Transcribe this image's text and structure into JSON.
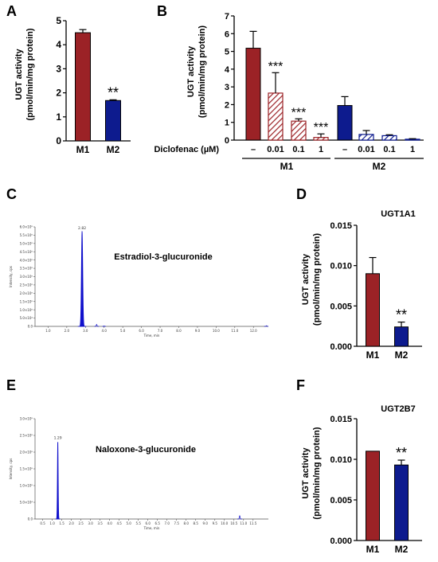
{
  "colors": {
    "m1": "#9b2226",
    "m2": "#0d1b8e",
    "chromatogram": "#1010cc",
    "axis": "#000000"
  },
  "chart_data": [
    {
      "panel": "A",
      "type": "bar",
      "ylabel_line1": "UGT activity",
      "ylabel_line2": "(pmol/min/mg protein)",
      "ylim": [
        0,
        5
      ],
      "yticks": [
        "0",
        "1",
        "2",
        "3",
        "4",
        "5"
      ],
      "categories": [
        "M1",
        "M2"
      ],
      "values": [
        4.5,
        1.68
      ],
      "errors": [
        0.13,
        0.03
      ],
      "annotations": [
        "",
        "**"
      ]
    },
    {
      "panel": "B",
      "type": "bar",
      "ylabel_line1": "UGT activity",
      "ylabel_line2": "(pmol/min/mg protein)",
      "ylim": [
        0,
        7
      ],
      "yticks": [
        "0",
        "1",
        "2",
        "3",
        "4",
        "5",
        "6",
        "7"
      ],
      "xlabel": "Diclofenac (µM)",
      "categories": [
        "–",
        "0.01",
        "0.1",
        "1",
        "–",
        "0.01",
        "0.1",
        "1"
      ],
      "groups": [
        "M1",
        "M2"
      ],
      "values": [
        5.18,
        2.65,
        1.07,
        0.15,
        1.95,
        0.32,
        0.25,
        0.05
      ],
      "errors": [
        0.95,
        1.15,
        0.13,
        0.2,
        0.5,
        0.22,
        0.05,
        0.03
      ],
      "annotations": [
        "",
        "***",
        "***",
        "***",
        "",
        "",
        "",
        ""
      ]
    },
    {
      "panel": "C",
      "type": "line",
      "title": "Estradiol-3-glucuronide",
      "peak_label": "2.82",
      "ylabel": "Intensity, cps",
      "xlabel": "Time, min",
      "xticks": [
        "1.0",
        "2.0",
        "3.0",
        "4.0",
        "5.0",
        "6.0",
        "7.0",
        "8.0",
        "9.0",
        "10.0",
        "11.0",
        "12.0"
      ],
      "yticks": [
        "0.0",
        "5.0×10⁴",
        "1.0×10⁵",
        "1.5×10⁵",
        "2.0×10⁵",
        "2.5×10⁵",
        "3.0×10⁵",
        "3.5×10⁵",
        "4.0×10⁵",
        "4.5×10⁵",
        "5.0×10⁵",
        "5.5×10⁵",
        "6.0×10⁵"
      ],
      "xlim": [
        0.3,
        12.8
      ],
      "ylim": [
        0,
        600000
      ],
      "peaks": [
        {
          "rt": 2.82,
          "height": 575000,
          "width": 0.09
        },
        {
          "rt": 3.6,
          "height": 12000,
          "width": 0.05
        },
        {
          "rt": 4.0,
          "height": 3000,
          "width": 0.04
        },
        {
          "rt": 12.7,
          "height": 4000,
          "width": 0.05
        }
      ]
    },
    {
      "panel": "D",
      "type": "bar",
      "title": "UGT1A1",
      "ylabel_line1": "UGT activity",
      "ylabel_line2": "(pmol/min/mg protein)",
      "ylim": [
        0,
        0.015
      ],
      "yticks": [
        "0.000",
        "0.005",
        "0.010",
        "0.015"
      ],
      "categories": [
        "M1",
        "M2"
      ],
      "values": [
        0.009,
        0.0024
      ],
      "errors": [
        0.002,
        0.0006
      ],
      "annotations": [
        "",
        "**"
      ]
    },
    {
      "panel": "E",
      "type": "line",
      "title": "Naloxone-3-glucuronide",
      "peak_label": "1.29",
      "ylabel": "Intensity, cps",
      "xlabel": "Time, min",
      "xticks": [
        "0.5",
        "1.0",
        "1.5",
        "2.0",
        "2.5",
        "3.0",
        "3.5",
        "4.0",
        "4.5",
        "5.0",
        "5.5",
        "6.0",
        "6.5",
        "7.0",
        "7.5",
        "8.0",
        "8.5",
        "9.0",
        "9.5",
        "10.0",
        "10.5",
        "11.0",
        "11.5"
      ],
      "yticks": [
        "0.0",
        "5.0×10⁴",
        "1.0×10⁵",
        "1.5×10⁵",
        "2.0×10⁵",
        "2.5×10⁵",
        "3.0×10⁵"
      ],
      "xlim": [
        0.1,
        12.3
      ],
      "ylim": [
        0,
        300000
      ],
      "peaks": [
        {
          "rt": 1.29,
          "height": 235000,
          "width": 0.05
        },
        {
          "rt": 10.8,
          "height": 10000,
          "width": 0.05
        }
      ]
    },
    {
      "panel": "F",
      "type": "bar",
      "title": "UGT2B7",
      "ylabel_line1": "UGT activity",
      "ylabel_line2": "(pmol/min/mg protein)",
      "ylim": [
        0,
        0.015
      ],
      "yticks": [
        "0.000",
        "0.005",
        "0.010",
        "0.015"
      ],
      "categories": [
        "M1",
        "M2"
      ],
      "values": [
        0.011,
        0.0093
      ],
      "errors": [
        0,
        0.0006
      ],
      "annotations": [
        "",
        "**"
      ]
    }
  ],
  "panel_letters": [
    "A",
    "B",
    "C",
    "D",
    "E",
    "F"
  ]
}
